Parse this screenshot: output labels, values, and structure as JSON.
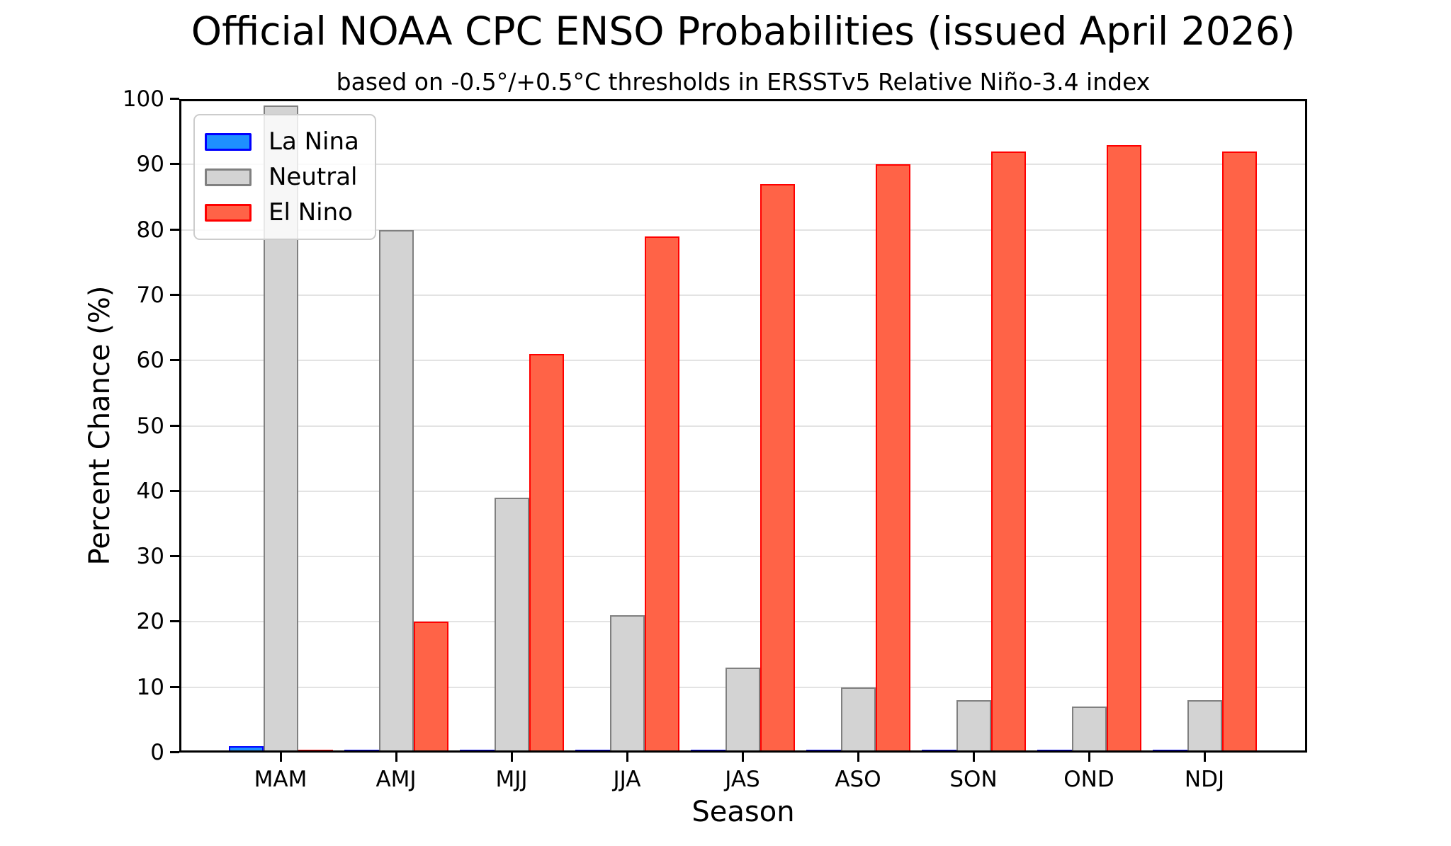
{
  "title": "Official NOAA CPC ENSO Probabilities (issued April 2026)",
  "subtitle": "based on -0.5°/+0.5°C thresholds in ERSSTv5 Relative Niño-3.4 index",
  "chart_data": {
    "type": "bar",
    "categories": [
      "MAM",
      "AMJ",
      "MJJ",
      "JJA",
      "JAS",
      "ASO",
      "SON",
      "OND",
      "NDJ"
    ],
    "series": [
      {
        "name": "La Nina",
        "fill": "#1E90FF",
        "edge": "#0000FF",
        "values": [
          1,
          0,
          0,
          0,
          0,
          0,
          0,
          0,
          0
        ]
      },
      {
        "name": "Neutral",
        "fill": "#D3D3D3",
        "edge": "#808080",
        "values": [
          99,
          80,
          39,
          21,
          13,
          10,
          8,
          7,
          8
        ]
      },
      {
        "name": "El Nino",
        "fill": "#FF6347",
        "edge": "#FF0000",
        "values": [
          0,
          20,
          61,
          79,
          87,
          90,
          92,
          93,
          92
        ]
      }
    ],
    "title": "Official NOAA CPC ENSO Probabilities (issued April 2026)",
    "xlabel": "Season",
    "ylabel": "Percent Chance (%)",
    "ylim": [
      0,
      100
    ],
    "yticks": [
      0,
      10,
      20,
      30,
      40,
      50,
      60,
      70,
      80,
      90,
      100
    ],
    "grid": true,
    "legend_position": "upper-left"
  }
}
